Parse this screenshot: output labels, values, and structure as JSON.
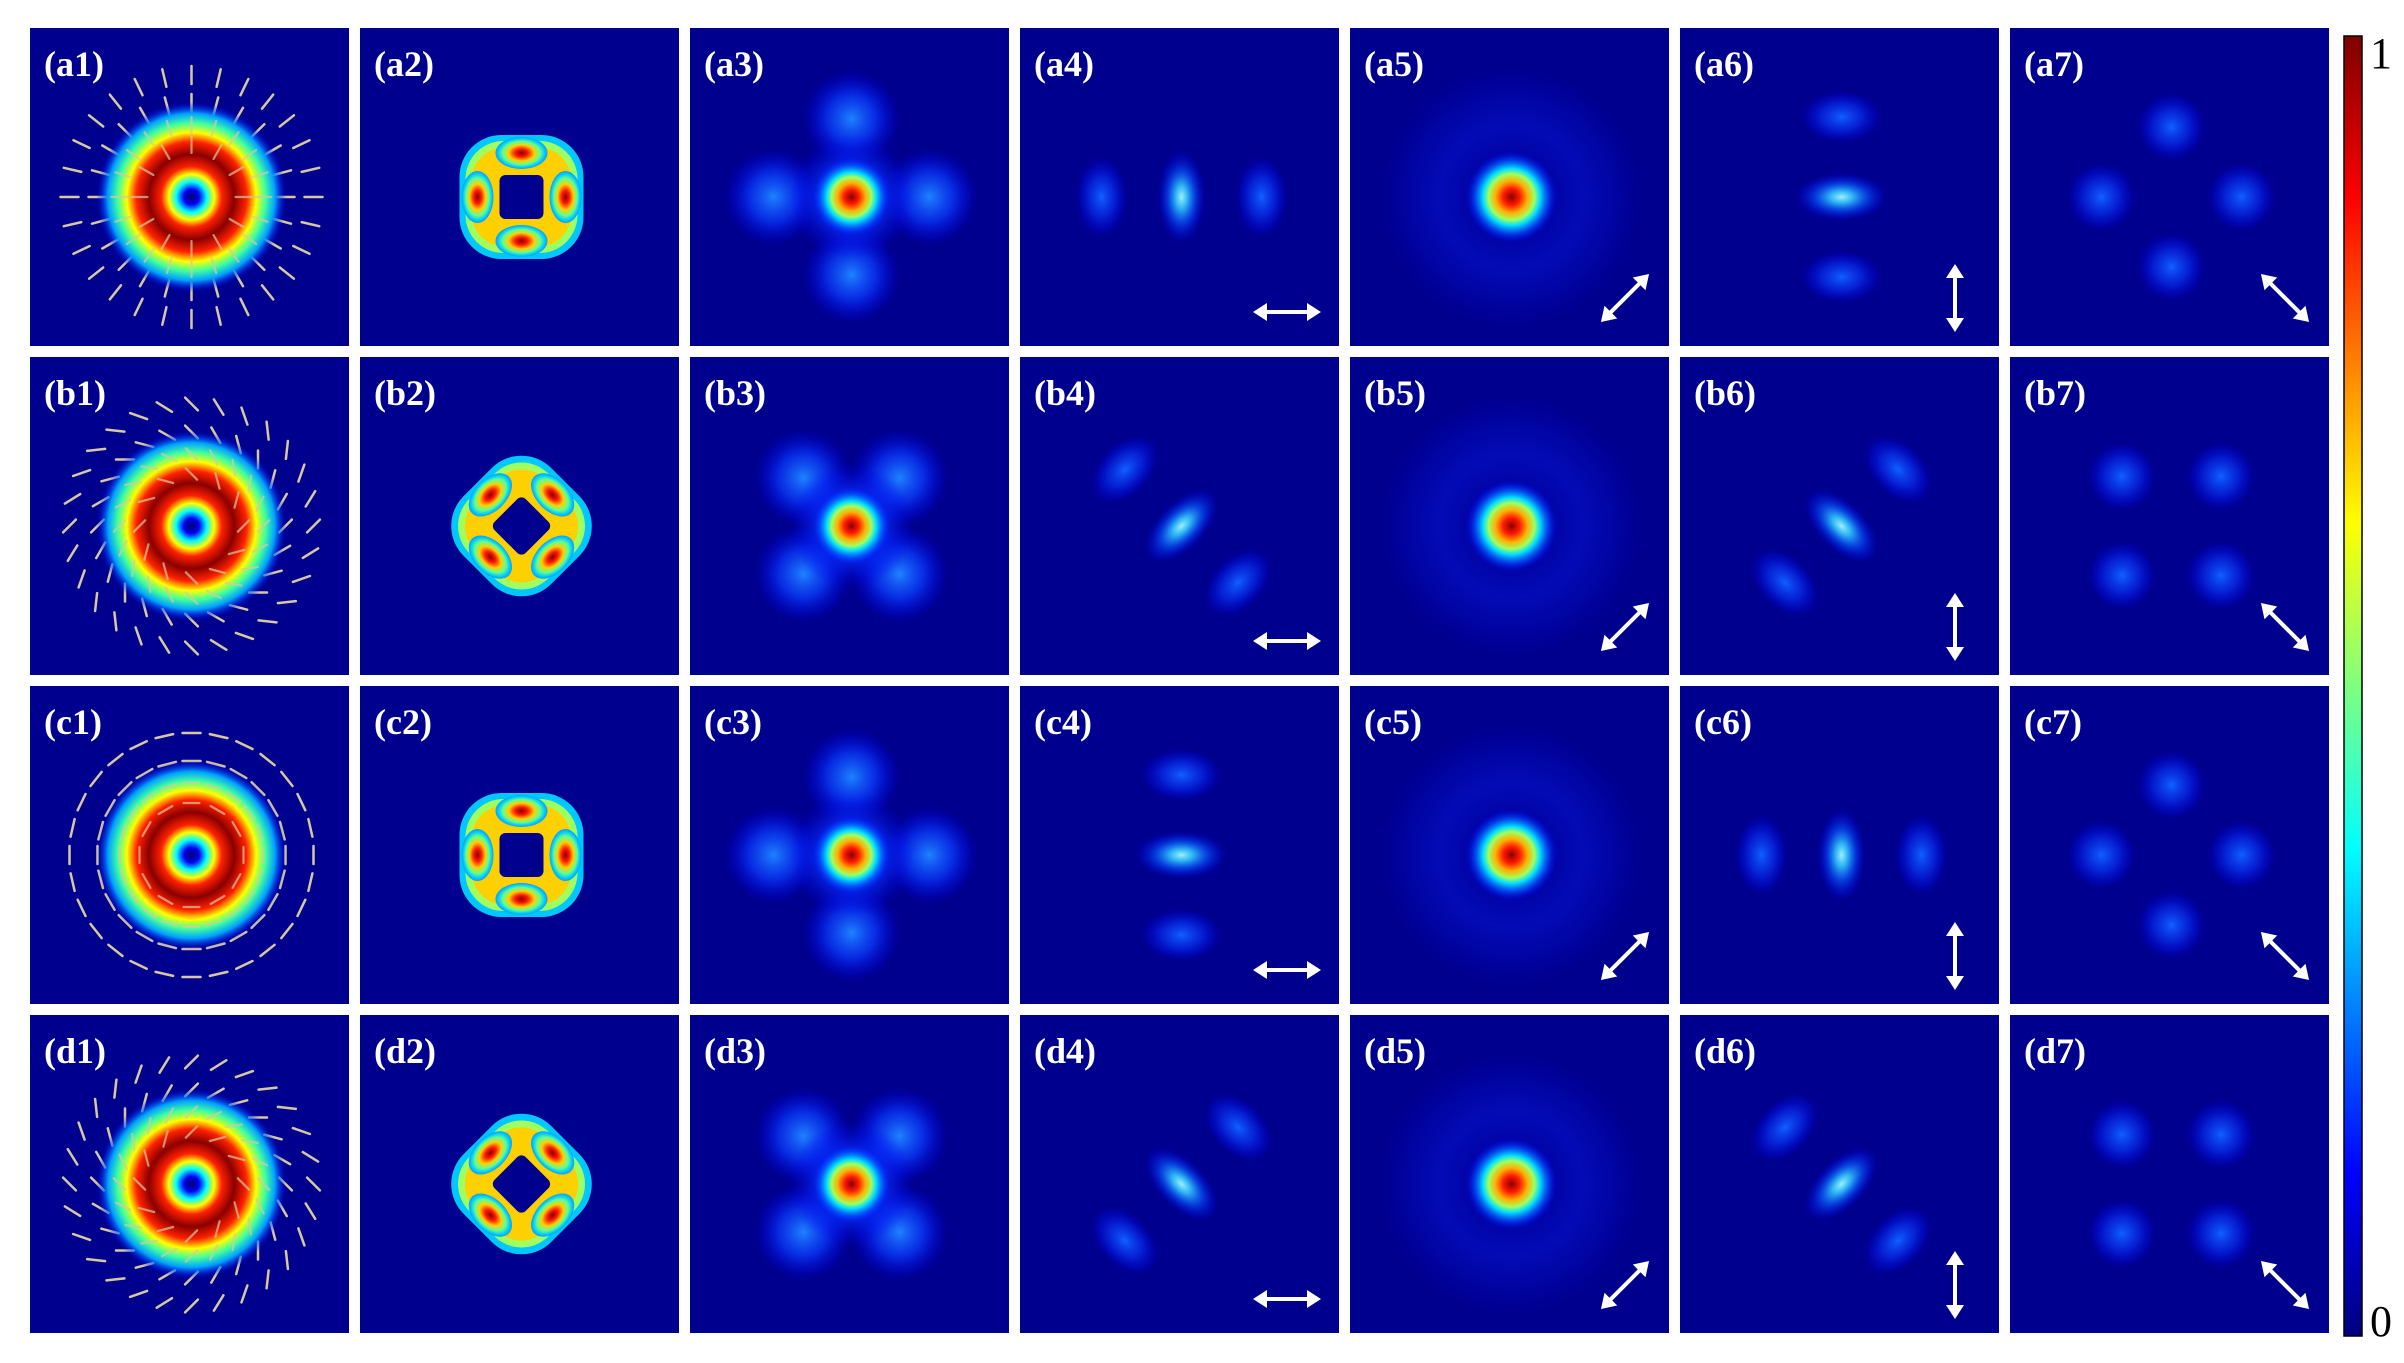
{
  "figure": {
    "rows": [
      {
        "id": "a",
        "panels": [
          {
            "label": "(a1)",
            "kind": "input",
            "orientation": "radial"
          },
          {
            "label": "(a2)",
            "kind": "four-lobe",
            "lobes": "axial"
          },
          {
            "label": "(a3)",
            "kind": "center-cross",
            "lobes": "axial"
          },
          {
            "label": "(a4)",
            "kind": "triple",
            "axis": "horizontal",
            "center": "vertical",
            "analyzer": "horizontal"
          },
          {
            "label": "(a5)",
            "kind": "spot",
            "analyzer": "diagonal-up"
          },
          {
            "label": "(a6)",
            "kind": "triple",
            "axis": "vertical",
            "center": "horizontal",
            "analyzer": "vertical"
          },
          {
            "label": "(a7)",
            "kind": "quad",
            "lobes": "axial",
            "analyzer": "diagonal-down"
          }
        ]
      },
      {
        "id": "b",
        "panels": [
          {
            "label": "(b1)",
            "kind": "input",
            "orientation": "spiral-ccw"
          },
          {
            "label": "(b2)",
            "kind": "four-lobe",
            "lobes": "diagonal"
          },
          {
            "label": "(b3)",
            "kind": "center-cross",
            "lobes": "diagonal"
          },
          {
            "label": "(b4)",
            "kind": "triple",
            "axis": "anti-diagonal",
            "center": "diagonal",
            "analyzer": "horizontal"
          },
          {
            "label": "(b5)",
            "kind": "spot",
            "analyzer": "diagonal-up"
          },
          {
            "label": "(b6)",
            "kind": "triple",
            "axis": "diagonal",
            "center": "anti-diagonal",
            "analyzer": "vertical"
          },
          {
            "label": "(b7)",
            "kind": "quad",
            "lobes": "diagonal",
            "analyzer": "diagonal-down"
          }
        ]
      },
      {
        "id": "c",
        "panels": [
          {
            "label": "(c1)",
            "kind": "input",
            "orientation": "azimuthal"
          },
          {
            "label": "(c2)",
            "kind": "four-lobe",
            "lobes": "axial"
          },
          {
            "label": "(c3)",
            "kind": "center-cross",
            "lobes": "axial"
          },
          {
            "label": "(c4)",
            "kind": "triple",
            "axis": "vertical",
            "center": "horizontal",
            "analyzer": "horizontal"
          },
          {
            "label": "(c5)",
            "kind": "spot",
            "analyzer": "diagonal-up"
          },
          {
            "label": "(c6)",
            "kind": "triple",
            "axis": "horizontal",
            "center": "vertical",
            "analyzer": "vertical"
          },
          {
            "label": "(c7)",
            "kind": "quad",
            "lobes": "axial",
            "analyzer": "diagonal-down"
          }
        ]
      },
      {
        "id": "d",
        "panels": [
          {
            "label": "(d1)",
            "kind": "input",
            "orientation": "spiral-cw"
          },
          {
            "label": "(d2)",
            "kind": "four-lobe",
            "lobes": "diagonal"
          },
          {
            "label": "(d3)",
            "kind": "center-cross",
            "lobes": "diagonal"
          },
          {
            "label": "(d4)",
            "kind": "triple",
            "axis": "diagonal",
            "center": "anti-diagonal",
            "analyzer": "horizontal"
          },
          {
            "label": "(d5)",
            "kind": "spot",
            "analyzer": "diagonal-up"
          },
          {
            "label": "(d6)",
            "kind": "triple",
            "axis": "anti-diagonal",
            "center": "diagonal",
            "analyzer": "vertical"
          },
          {
            "label": "(d7)",
            "kind": "quad",
            "lobes": "diagonal",
            "analyzer": "diagonal-down"
          }
        ]
      }
    ]
  },
  "colorbar": {
    "max_label": "1",
    "min_label": "0",
    "colormap": "jet",
    "stops": [
      "#00007f",
      "#0000ff",
      "#007fff",
      "#00ffff",
      "#7fff7f",
      "#ffff00",
      "#ff7f00",
      "#ff0000",
      "#7f0000"
    ]
  },
  "colors": {
    "background": "#00008f",
    "polarization_lines": "#d8c8a0",
    "analyzer_arrow": "#ffffff",
    "divider": "#ffffff"
  }
}
